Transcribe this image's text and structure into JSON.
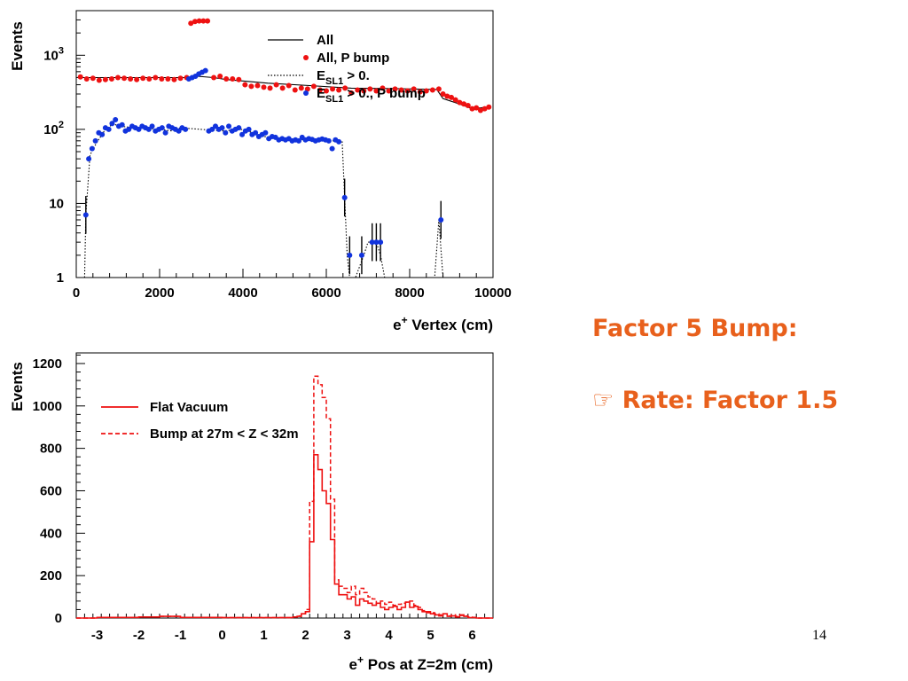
{
  "side_text": {
    "title": "Factor 5 Bump:",
    "bullet_icon": "pointing-hand-icon",
    "bullet_glyph": "☞",
    "bullet_text": "Rate: Factor 1.5",
    "color": "#e8601c"
  },
  "page_number": "14",
  "chart_data": [
    {
      "type": "scatter",
      "ylabel": "Events",
      "xlabel": "Vertex (cm)",
      "xlabel_prefix": "e",
      "xlabel_superscript": "+",
      "xlim": [
        0,
        10000
      ],
      "ylim": [
        1,
        4000
      ],
      "yscale": "log",
      "xticks": [
        0,
        2000,
        4000,
        6000,
        8000,
        10000
      ],
      "yticks": [
        {
          "value": 1,
          "label": "1"
        },
        {
          "value": 10,
          "label": "10"
        },
        {
          "value": 100,
          "label": "10",
          "exponent": "2"
        },
        {
          "value": 1000,
          "label": "10",
          "exponent": "3"
        }
      ],
      "legend": {
        "position": "top-right",
        "entries": [
          {
            "label": "All",
            "style": "solid-line",
            "color": "#000000"
          },
          {
            "label": "All, P bump",
            "style": "marker",
            "color": "#ee1111"
          },
          {
            "label": "E",
            "subscript": "SL1",
            "suffix": " > 0.",
            "style": "dotted-line",
            "color": "#000000"
          },
          {
            "label": "E",
            "subscript": "SL1",
            "suffix": " > 0., P bump",
            "style": "marker",
            "color": "#1133dd"
          }
        ]
      },
      "series": [
        {
          "name": "All",
          "style": "solid-line",
          "color": "#000000",
          "x": [
            100,
            2700,
            2900,
            3300,
            3600,
            4600,
            5600,
            6600,
            7600,
            8650,
            8800,
            9200,
            9500,
            9900
          ],
          "y": [
            500,
            500,
            520,
            500,
            470,
            420,
            390,
            360,
            355,
            345,
            260,
            220,
            190,
            200
          ]
        },
        {
          "name": "All, P bump",
          "style": "marker",
          "color": "#ee1111",
          "x": [
            100,
            250,
            400,
            550,
            700,
            850,
            1000,
            1150,
            1300,
            1450,
            1600,
            1750,
            1900,
            2050,
            2200,
            2350,
            2500,
            2650,
            2750,
            2850,
            2950,
            3050,
            3150,
            3300,
            3450,
            3600,
            3750,
            3900,
            4050,
            4200,
            4350,
            4500,
            4650,
            4800,
            4950,
            5100,
            5250,
            5400,
            5550,
            5700,
            5850,
            6000,
            6150,
            6300,
            6450,
            6600,
            6750,
            6900,
            7050,
            7200,
            7350,
            7500,
            7650,
            7800,
            7950,
            8100,
            8250,
            8400,
            8550,
            8700,
            8800,
            8900,
            9000,
            9100,
            9200,
            9300,
            9400,
            9500,
            9600,
            9700,
            9800,
            9900
          ],
          "y": [
            510,
            480,
            490,
            460,
            470,
            480,
            500,
            490,
            480,
            470,
            490,
            480,
            500,
            480,
            480,
            470,
            490,
            500,
            2700,
            2850,
            2900,
            2900,
            2900,
            500,
            520,
            480,
            480,
            470,
            400,
            380,
            390,
            370,
            360,
            400,
            360,
            390,
            340,
            360,
            350,
            380,
            340,
            330,
            350,
            340,
            360,
            310,
            340,
            330,
            350,
            330,
            360,
            330,
            350,
            340,
            330,
            350,
            320,
            330,
            340,
            350,
            300,
            280,
            270,
            250,
            230,
            220,
            210,
            190,
            195,
            180,
            190,
            200
          ]
        },
        {
          "name": "E > 0.",
          "style": "dotted-line",
          "color": "#000000",
          "x": [
            200,
            230,
            330,
            480,
            700,
            900,
            1000,
            1500,
            2000,
            2300,
            2500,
            3000,
            3500,
            4000,
            4500,
            5000,
            5500,
            6000,
            6300,
            6380,
            6440,
            6500,
            6560,
            6700,
            6900,
            7000,
            7200,
            7300,
            7400,
            8600,
            8700,
            8800
          ],
          "y": [
            1,
            7,
            45,
            65,
            100,
            120,
            110,
            105,
            100,
            95,
            105,
            100,
            95,
            100,
            80,
            75,
            72,
            70,
            70,
            68,
            12,
            2,
            1,
            1,
            2,
            3,
            3,
            2,
            1,
            1,
            6,
            1
          ]
        },
        {
          "name": "E > 0., P bump",
          "style": "marker",
          "color": "#1133dd",
          "x": [
            230,
            300,
            380,
            460,
            540,
            620,
            700,
            780,
            860,
            940,
            1020,
            1100,
            1180,
            1260,
            1340,
            1420,
            1500,
            1580,
            1660,
            1740,
            1820,
            1900,
            1980,
            2060,
            2140,
            2220,
            2300,
            2380,
            2460,
            2540,
            2620,
            2700,
            2780,
            2860,
            2940,
            3020,
            3100,
            3180,
            3260,
            3340,
            3420,
            3500,
            3580,
            3660,
            3740,
            3820,
            3900,
            3980,
            4060,
            4140,
            4220,
            4300,
            4380,
            4460,
            4540,
            4620,
            4700,
            4780,
            4860,
            4940,
            5020,
            5100,
            5180,
            5260,
            5340,
            5420,
            5500,
            5580,
            5660,
            5740,
            5820,
            5900,
            5980,
            6060,
            6140,
            6220,
            6300,
            6440,
            6560,
            6850,
            7100,
            7200,
            7300,
            8750
          ],
          "y": [
            7,
            40,
            55,
            70,
            90,
            85,
            105,
            100,
            120,
            135,
            110,
            115,
            95,
            100,
            110,
            105,
            100,
            110,
            105,
            100,
            110,
            95,
            100,
            105,
            90,
            110,
            105,
            100,
            95,
            105,
            100,
            480,
            500,
            520,
            560,
            590,
            620,
            95,
            100,
            110,
            100,
            105,
            90,
            110,
            95,
            100,
            105,
            85,
            95,
            100,
            85,
            90,
            80,
            85,
            90,
            75,
            80,
            78,
            72,
            75,
            72,
            75,
            70,
            72,
            70,
            78,
            72,
            75,
            73,
            70,
            72,
            74,
            72,
            70,
            55,
            72,
            68,
            12,
            2,
            2,
            3,
            3,
            3,
            6
          ]
        }
      ]
    },
    {
      "type": "line",
      "ylabel": "Events",
      "xlabel": "Pos at Z=2m (cm)",
      "xlabel_prefix": "e",
      "xlabel_superscript": "+",
      "xlim": [
        -3.5,
        6.5
      ],
      "ylim": [
        0,
        1250
      ],
      "xticks": [
        -3,
        -2,
        -1,
        0,
        1,
        2,
        3,
        4,
        5,
        6
      ],
      "yticks": [
        0,
        200,
        400,
        600,
        800,
        1000,
        1200
      ],
      "legend": {
        "position": "top-left",
        "entries": [
          {
            "label": "Flat Vacuum",
            "style": "solid-line",
            "color": "#ee1111"
          },
          {
            "label": "Bump at 27m < Z < 32m",
            "style": "dashed-line",
            "color": "#ee1111"
          }
        ]
      },
      "series": [
        {
          "name": "Flat Vacuum",
          "style": "solid-line",
          "color": "#ee1111",
          "x": [
            -3.5,
            -3.0,
            -2.0,
            -1.5,
            -1.0,
            0.0,
            1.0,
            1.7,
            1.8,
            1.9,
            2.0,
            2.1,
            2.2,
            2.3,
            2.4,
            2.5,
            2.6,
            2.7,
            2.8,
            2.9,
            3.0,
            3.1,
            3.2,
            3.3,
            3.4,
            3.5,
            3.6,
            3.7,
            3.8,
            3.9,
            4.0,
            4.1,
            4.2,
            4.3,
            4.4,
            4.5,
            4.6,
            4.7,
            4.8,
            4.9,
            5.0,
            5.1,
            5.2,
            5.3,
            5.4,
            5.5,
            5.6,
            5.7,
            5.8,
            5.9,
            6.0,
            6.1,
            6.2,
            6.3,
            6.4
          ],
          "y": [
            0,
            3,
            5,
            8,
            3,
            2,
            2,
            5,
            8,
            20,
            30,
            360,
            770,
            700,
            600,
            540,
            370,
            160,
            110,
            110,
            90,
            100,
            60,
            90,
            80,
            70,
            60,
            70,
            50,
            40,
            50,
            55,
            40,
            50,
            75,
            50,
            55,
            40,
            30,
            25,
            20,
            15,
            10,
            20,
            8,
            10,
            5,
            15,
            8,
            2,
            2,
            0,
            0,
            0,
            0
          ]
        },
        {
          "name": "Bump at 27m < Z < 32m",
          "style": "dashed-line",
          "color": "#ee1111",
          "x": [
            -3.5,
            -3.0,
            -2.0,
            -1.5,
            -1.0,
            0.0,
            1.0,
            1.7,
            1.8,
            1.9,
            2.0,
            2.1,
            2.2,
            2.3,
            2.4,
            2.5,
            2.6,
            2.7,
            2.8,
            2.9,
            3.0,
            3.1,
            3.2,
            3.3,
            3.4,
            3.5,
            3.6,
            3.7,
            3.8,
            3.9,
            4.0,
            4.1,
            4.2,
            4.3,
            4.4,
            4.5,
            4.6,
            4.7,
            4.8,
            4.9,
            5.0,
            5.1,
            5.2,
            5.3,
            5.4,
            5.5,
            5.6,
            5.7,
            5.8,
            5.9,
            6.0,
            6.1,
            6.2,
            6.3,
            6.4
          ],
          "y": [
            0,
            3,
            5,
            8,
            3,
            2,
            2,
            5,
            10,
            20,
            40,
            550,
            1140,
            1100,
            1040,
            940,
            560,
            180,
            150,
            140,
            120,
            150,
            110,
            140,
            120,
            100,
            90,
            70,
            80,
            65,
            75,
            60,
            65,
            70,
            75,
            80,
            60,
            50,
            35,
            30,
            25,
            20,
            15,
            20,
            10,
            15,
            8,
            12,
            10,
            5,
            3,
            0,
            0,
            0,
            0
          ]
        }
      ]
    }
  ]
}
